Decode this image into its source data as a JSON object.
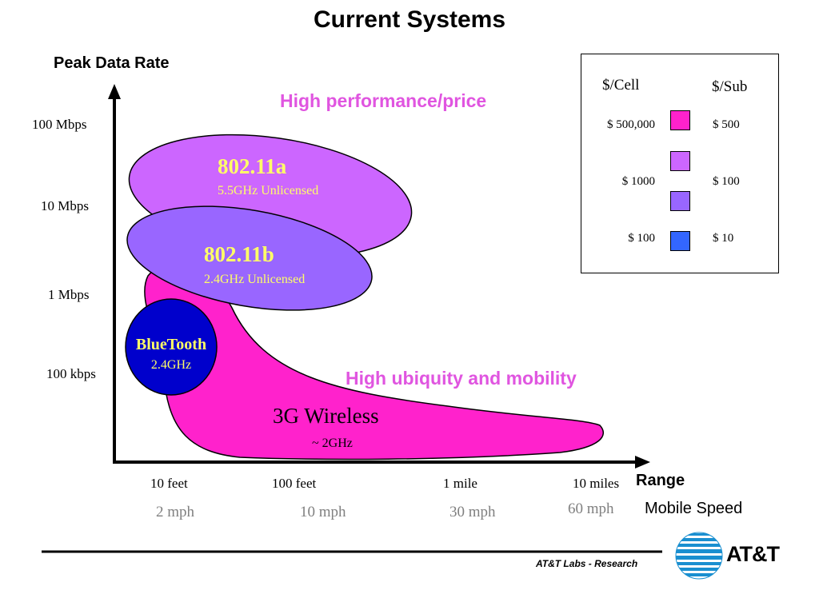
{
  "title": "Current Systems",
  "y_axis_label": "Peak Data Rate",
  "x_axis_label": "Range",
  "speed_label": "Mobile Speed",
  "y_ticks": [
    "100 Mbps",
    "10 Mbps",
    "1 Mbps",
    "100 kbps"
  ],
  "range_ticks": [
    "10 feet",
    "100 feet",
    "1 mile",
    "10 miles"
  ],
  "speed_ticks": [
    "2 mph",
    "10 mph",
    "30 mph",
    "60 mph"
  ],
  "annotations": {
    "high_performance": "High performance/price",
    "high_ubiquity": "High ubiquity and mobility"
  },
  "technologies": {
    "wifi_a": {
      "name": "802.11a",
      "band": "5.5GHz Unlicensed"
    },
    "wifi_b": {
      "name": "802.11b",
      "band": "2.4GHz Unlicensed"
    },
    "bluetooth": {
      "name": "BlueTooth",
      "band": "2.4GHz"
    },
    "wireless_3g": {
      "name": "3G Wireless",
      "band": "~ 2GHz"
    }
  },
  "legend": {
    "cell_header": "$/Cell",
    "sub_header": "$/Sub",
    "rows": [
      {
        "cell": "$ 500,000",
        "sub": "$ 500",
        "color": "#FF22CC"
      },
      {
        "cell": "",
        "sub": "",
        "color": "#CC66FF"
      },
      {
        "cell": "$ 1000",
        "sub": "$ 100",
        "color": "#9966FF"
      },
      {
        "cell": "$ 100",
        "sub": "$ 10",
        "color": "#3366FF"
      }
    ]
  },
  "colors": {
    "wifi_a": "#CC66FF",
    "wifi_b": "#9966FF",
    "bluetooth": "#0000CC",
    "wireless_3g": "#FF22CC",
    "annotation": "#E055E0",
    "tech_label": "#FFFF66",
    "speed_text": "#808080"
  },
  "footer": {
    "lab": "AT&T Labs - Research",
    "logo": "AT&T"
  }
}
